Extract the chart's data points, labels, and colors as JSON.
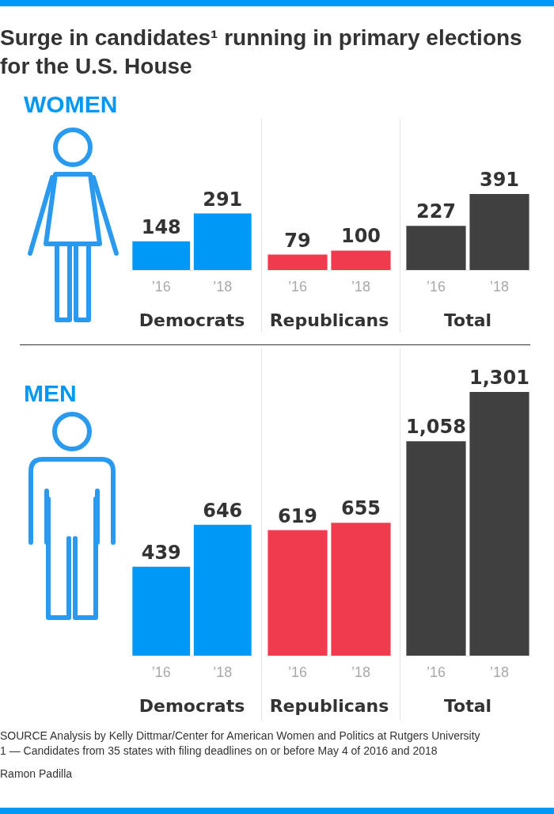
{
  "chart_data": [
    {
      "type": "bar",
      "title": "Surge in candidates¹ running in primary elections for the U.S. House",
      "subtitle": "WOMEN",
      "categories": [
        "’16",
        "’18"
      ],
      "values": [
        148,
        291
      ],
      "value_labels": [
        "148",
        "291"
      ],
      "color": "#0098f7",
      "xlabel": "Democrats"
    },
    {
      "type": "bar",
      "categories": [
        "’16",
        "’18"
      ],
      "values": [
        79,
        100
      ],
      "value_labels": [
        "79",
        "100"
      ],
      "color": "#ef3b4d",
      "xlabel": "Republicans"
    },
    {
      "type": "bar",
      "categories": [
        "’16",
        "’18"
      ],
      "values": [
        227,
        391
      ],
      "value_labels": [
        "227",
        "391"
      ],
      "color": "#404040",
      "xlabel": "Total"
    },
    {
      "type": "bar",
      "subtitle": "MEN",
      "categories": [
        "’16",
        "’18"
      ],
      "values": [
        439,
        646
      ],
      "value_labels": [
        "439",
        "646"
      ],
      "color": "#0098f7",
      "xlabel": "Democrats"
    },
    {
      "type": "bar",
      "categories": [
        "’16",
        "’18"
      ],
      "values": [
        619,
        655
      ],
      "value_labels": [
        "619",
        "655"
      ],
      "color": "#ef3b4d",
      "xlabel": "Republicans"
    },
    {
      "type": "bar",
      "categories": [
        "’16",
        "’18"
      ],
      "values": [
        1058,
        1301
      ],
      "value_labels": [
        "1,058",
        "1,301"
      ],
      "color": "#404040",
      "xlabel": "Total",
      "annotations": [
        "SOURCE Analysis by Kelly Dittmar/Center for American Women and Politics at Rutgers University",
        "1 — Candidates from 35 states with filing deadlines on or before May 4 of 2016 and 2018",
        "Ramon Padilla"
      ]
    }
  ]
}
